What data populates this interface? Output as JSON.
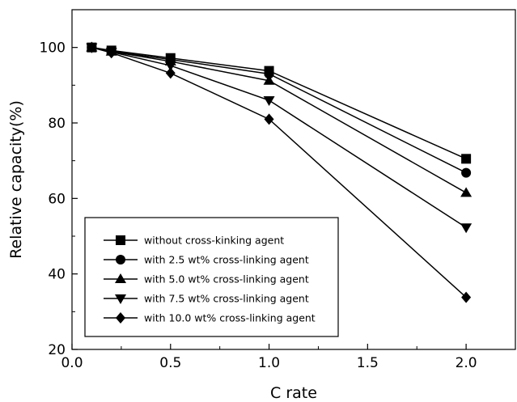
{
  "chart_data": {
    "type": "line",
    "xlabel": "C rate",
    "ylabel": "Relative capacity(%)",
    "xlim": [
      0.0,
      2.25
    ],
    "ylim": [
      20,
      110
    ],
    "xticks": [
      "0.0",
      "0.5",
      "1.0",
      "1.5",
      "2.0"
    ],
    "xtick_values": [
      0.0,
      0.5,
      1.0,
      1.5,
      2.0
    ],
    "yticks": [
      "20",
      "40",
      "60",
      "80",
      "100"
    ],
    "ytick_values": [
      20,
      40,
      60,
      80,
      100
    ],
    "grid": false,
    "legend_position": "bottom-left",
    "x": [
      0.1,
      0.2,
      0.5,
      1.0,
      2.0
    ],
    "series": [
      {
        "name": "without cross-kinking agent",
        "marker": "square",
        "values": [
          100,
          99.2,
          97.2,
          93.8,
          70.5
        ]
      },
      {
        "name": "with 2.5 wt% cross-linking agent",
        "marker": "circle",
        "values": [
          100,
          99.0,
          96.8,
          93.0,
          66.8
        ]
      },
      {
        "name": "with 5.0 wt% cross-linking agent",
        "marker": "triangle-up",
        "values": [
          100,
          98.9,
          96.3,
          91.2,
          61.5
        ]
      },
      {
        "name": "with 7.5 wt% cross-linking agent",
        "marker": "triangle-down",
        "values": [
          100,
          98.8,
          95.2,
          86.0,
          52.3
        ]
      },
      {
        "name": "with 10.0 wt% cross-linking agent",
        "marker": "diamond",
        "values": [
          100,
          98.6,
          93.2,
          81.0,
          33.8
        ]
      }
    ],
    "colors": {
      "line": "#000000",
      "marker": "#000000",
      "background": "#ffffff"
    }
  }
}
